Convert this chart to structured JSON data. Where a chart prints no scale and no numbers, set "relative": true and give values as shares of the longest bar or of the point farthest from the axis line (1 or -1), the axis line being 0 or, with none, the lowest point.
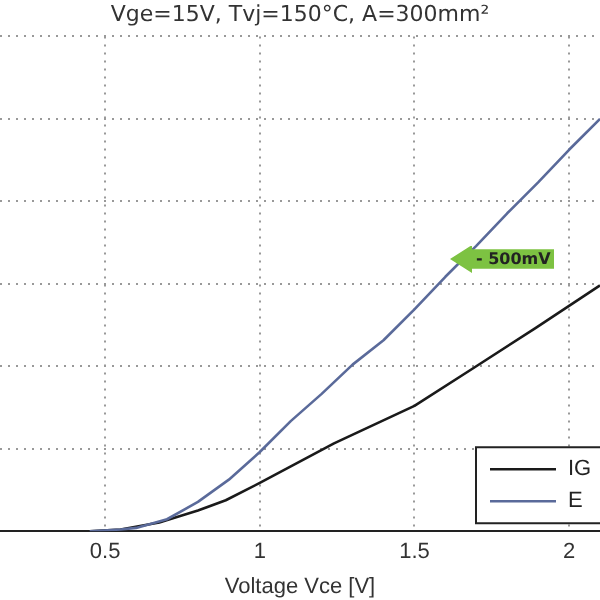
{
  "chart_data": {
    "type": "line",
    "title": "Vge=15V, Tvj=150°C, A=300mm²",
    "xlabel": "Voltage Vce [V]",
    "relative": true,
    "xlim": [
      0.16,
      2.1
    ],
    "xticks": [
      0.5,
      1,
      1.5,
      2
    ],
    "grid": true,
    "legend": "bottom right",
    "marker": "none",
    "line_style": "solid",
    "annotations": [
      "- 500mV"
    ],
    "series": [
      {
        "name": "IG",
        "color": "#1a1a1a",
        "x": [
          0.45,
          0.55,
          0.675,
          0.8,
          0.89,
          1.0,
          1.24,
          1.5,
          1.7,
          1.89,
          2.1
        ],
        "values": [
          0,
          0.004,
          0.021,
          0.05,
          0.075,
          0.117,
          0.213,
          0.304,
          0.4,
          0.492,
          0.596
        ]
      },
      {
        "name": "E",
        "color": "#5a6a9a",
        "x": [
          0.45,
          0.55,
          0.6,
          0.7,
          0.8,
          0.9,
          1.0,
          1.1,
          1.2,
          1.3,
          1.4,
          1.5,
          1.6,
          1.7,
          1.8,
          1.9,
          2.0,
          2.1
        ],
        "values": [
          0,
          0.004,
          0.008,
          0.029,
          0.071,
          0.125,
          0.192,
          0.267,
          0.333,
          0.404,
          0.463,
          0.538,
          0.617,
          0.692,
          0.771,
          0.846,
          0.925,
          1
        ]
      }
    ]
  }
}
